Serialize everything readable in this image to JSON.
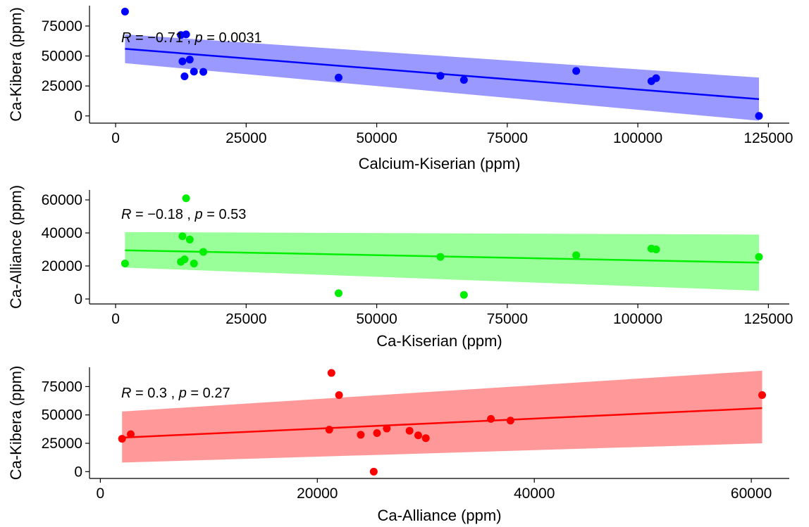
{
  "chart_data": [
    {
      "type": "scatter",
      "xlabel": "Calcium-Kiserian (ppm)",
      "ylabel": "Ca-Kibera (ppm)",
      "xlim": [
        -5000,
        129000
      ],
      "ylim": [
        -6000,
        92000
      ],
      "xticks": [
        "0",
        "25000",
        "50000",
        "75000",
        "100000",
        "125000"
      ],
      "xtick_values": [
        0,
        25000,
        50000,
        75000,
        100000,
        125000
      ],
      "yticks": [
        "0",
        "25000",
        "50000",
        "75000"
      ],
      "ytick_values": [
        0,
        25000,
        50000,
        75000
      ],
      "annotation": {
        "r_label": "R",
        "r_text": " = −0.71 , ",
        "p_label": "p",
        "p_text": " = 0.0031"
      },
      "color": "#0000ff",
      "band_color": "#9999ff",
      "x": [
        1800,
        12500,
        12800,
        13200,
        13500,
        14200,
        15000,
        16800,
        42700,
        62200,
        66700,
        88200,
        102600,
        103500,
        123200
      ],
      "y": [
        87000,
        67500,
        45500,
        33000,
        68000,
        47000,
        37000,
        36800,
        32000,
        33500,
        30000,
        37500,
        29000,
        31500,
        0
      ],
      "fit": {
        "x": [
          1800,
          123200
        ],
        "y": [
          56000,
          14000
        ],
        "lower": [
          44000,
          -4000
        ],
        "upper": [
          68000,
          32000
        ]
      }
    },
    {
      "type": "scatter",
      "xlabel": "Ca-Kiserian (ppm)",
      "ylabel": "Ca-Alliance (ppm)",
      "xlim": [
        -5000,
        129000
      ],
      "ylim": [
        -3000,
        66000
      ],
      "xticks": [
        "0",
        "25000",
        "50000",
        "75000",
        "100000",
        "125000"
      ],
      "xtick_values": [
        0,
        25000,
        50000,
        75000,
        100000,
        125000
      ],
      "yticks": [
        "0",
        "20000",
        "40000",
        "60000"
      ],
      "ytick_values": [
        0,
        20000,
        40000,
        60000
      ],
      "annotation": {
        "r_label": "R",
        "r_text": " = −0.18 , ",
        "p_label": "p",
        "p_text": " = 0.53"
      },
      "color": "#00ee00",
      "band_color": "#99ff99",
      "x": [
        1800,
        12500,
        12800,
        13200,
        13500,
        14200,
        15000,
        16800,
        42700,
        62200,
        66700,
        88200,
        102600,
        103500,
        123200
      ],
      "y": [
        21500,
        22500,
        38000,
        24000,
        61000,
        36000,
        21500,
        28500,
        3500,
        25500,
        2500,
        26500,
        30500,
        30000,
        25500
      ],
      "fit": {
        "x": [
          1800,
          123200
        ],
        "y": [
          29500,
          22000
        ],
        "lower": [
          19000,
          5000
        ],
        "upper": [
          40500,
          39000
        ]
      }
    },
    {
      "type": "scatter",
      "xlabel": "Ca-Alliance (ppm)",
      "ylabel": "Ca-Kibera (ppm)",
      "xlim": [
        -1000,
        63500
      ],
      "ylim": [
        -6000,
        92000
      ],
      "xticks": [
        "0",
        "20000",
        "40000",
        "60000"
      ],
      "xtick_values": [
        0,
        20000,
        40000,
        60000
      ],
      "yticks": [
        "0",
        "25000",
        "50000",
        "75000"
      ],
      "ytick_values": [
        0,
        25000,
        50000,
        75000
      ],
      "annotation": {
        "r_label": "R",
        "r_text": " = 0.3 , ",
        "p_label": "p",
        "p_text": " = 0.27"
      },
      "color": "#ff0000",
      "band_color": "#ff9999",
      "x": [
        2000,
        2800,
        21100,
        21300,
        22000,
        24000,
        25200,
        25500,
        26400,
        28500,
        29300,
        30000,
        36000,
        37800,
        61000
      ],
      "y": [
        29000,
        33000,
        37000,
        87000,
        67500,
        32500,
        0,
        34000,
        38000,
        36000,
        32000,
        29500,
        46500,
        45000,
        67500
      ],
      "fit": {
        "x": [
          2000,
          61000
        ],
        "y": [
          30000,
          56000
        ],
        "lower": [
          8000,
          25000
        ],
        "upper": [
          53000,
          89000
        ]
      }
    }
  ]
}
